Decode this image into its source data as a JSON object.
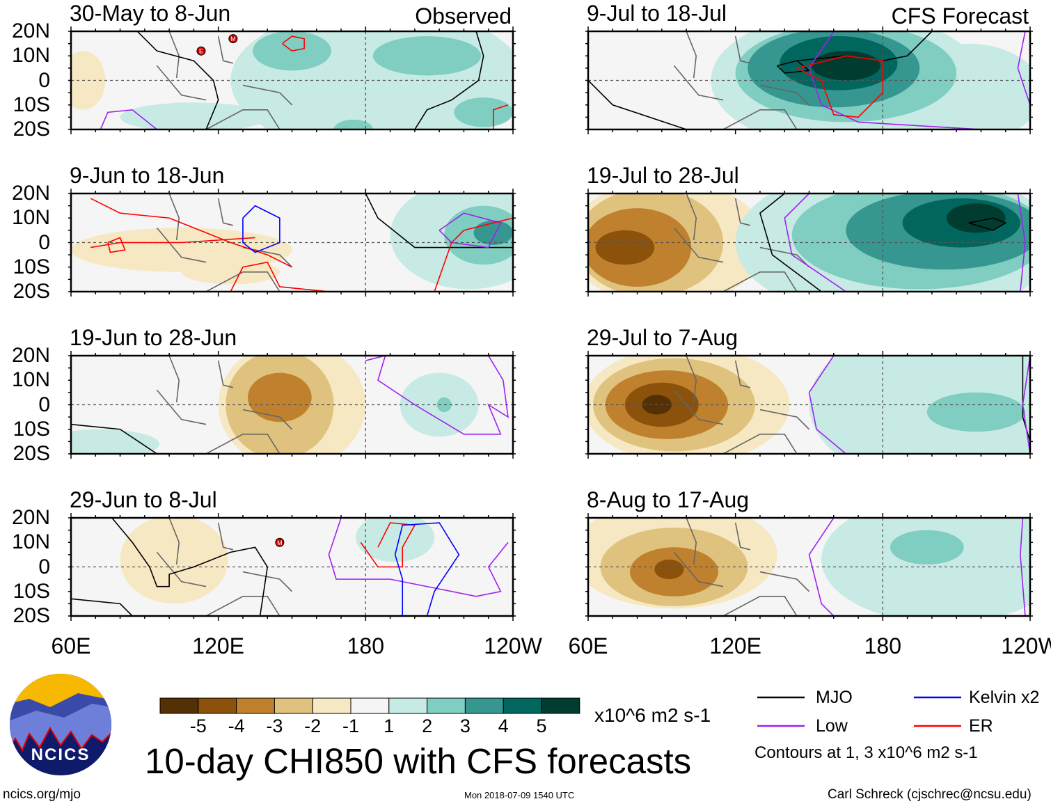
{
  "figure_title": "10-day CHI850 with CFS forecasts",
  "left_header": "Observed",
  "right_header": "CFS Forecast",
  "panels_left": [
    {
      "title": "30-May to 8-Jun",
      "markers": [
        {
          "label": "E",
          "lon": 113,
          "lat": 12
        },
        {
          "label": "M",
          "lon": 126,
          "lat": 17
        }
      ]
    },
    {
      "title": "9-Jun to 18-Jun",
      "markers": []
    },
    {
      "title": "19-Jun to 28-Jun",
      "markers": []
    },
    {
      "title": "29-Jun to 8-Jul",
      "markers": [
        {
          "label": "M",
          "lon": 145,
          "lat": 10
        }
      ]
    }
  ],
  "panels_right": [
    {
      "title": "9-Jul to 18-Jul"
    },
    {
      "title": "19-Jul to 28-Jul"
    },
    {
      "title": "29-Jul to 7-Aug"
    },
    {
      "title": "8-Aug to 17-Aug"
    }
  ],
  "lat_labels": [
    "20N",
    "10N",
    "0",
    "10S",
    "20S"
  ],
  "lon_labels": [
    "60E",
    "120E",
    "180",
    "120W"
  ],
  "colorbar": {
    "labels": [
      "-5",
      "-4",
      "-3",
      "-2",
      "-1",
      "1",
      "2",
      "3",
      "4",
      "5"
    ],
    "colors": [
      "#543005",
      "#8c510a",
      "#bf812d",
      "#dfc27d",
      "#f6e8c3",
      "#f5f5f5",
      "#c7eae5",
      "#80cdc1",
      "#35978f",
      "#01665e",
      "#003c30"
    ],
    "units": "x10^6 m2 s-1"
  },
  "legend": [
    {
      "label": "MJO",
      "color": "#000000"
    },
    {
      "label": "Kelvin x2",
      "color": "#0000ff"
    },
    {
      "label": "Low",
      "color": "#a020f0"
    },
    {
      "label": "ER",
      "color": "#ff0000"
    }
  ],
  "contour_note": "Contours at 1, 3 x10^6 m2 s-1",
  "logo_text": "NCICS",
  "footer": {
    "url": "ncics.org/mjo",
    "timestamp": "Mon 2018-07-09 1540 UTC",
    "credit": "Carl Schreck (cjschrec@ncsu.edu)"
  }
}
